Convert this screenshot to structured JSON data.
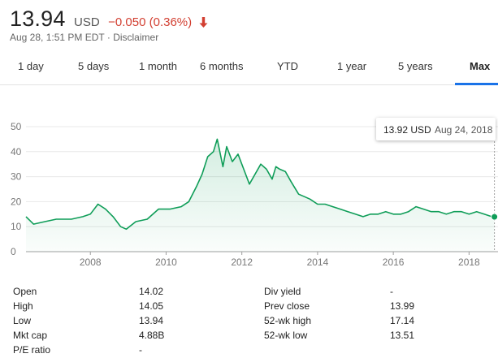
{
  "quote": {
    "price": "13.94",
    "currency": "USD",
    "change": "−0.050 (0.36%)",
    "change_color": "#d23f31",
    "timestamp": "Aug 28, 1:51 PM EDT",
    "separator": " · ",
    "disclaimer": "Disclaimer",
    "direction_icon": "down-arrow-icon"
  },
  "tabs": [
    {
      "label": "1 day"
    },
    {
      "label": "5 days"
    },
    {
      "label": "1 month"
    },
    {
      "label": "6 months"
    },
    {
      "label": "YTD"
    },
    {
      "label": "1 year"
    },
    {
      "label": "5 years"
    },
    {
      "label": "Max",
      "active": true
    }
  ],
  "tooltip": {
    "value": "13.92 USD",
    "date": "Aug 24, 2018"
  },
  "chart_data": {
    "type": "area",
    "title": "",
    "xlabel": "",
    "ylabel": "",
    "x_ticks": [
      "2008",
      "2010",
      "2012",
      "2014",
      "2016",
      "2018"
    ],
    "y_ticks": [
      "0",
      "10",
      "20",
      "30",
      "40",
      "50"
    ],
    "ylim": [
      0,
      50
    ],
    "xlim": [
      2006.3,
      2018.7
    ],
    "grid": true,
    "line_color": "#0f9d58",
    "x": [
      2006.3,
      2006.5,
      2006.8,
      2007.1,
      2007.5,
      2007.8,
      2008.0,
      2008.2,
      2008.4,
      2008.6,
      2008.8,
      2008.95,
      2009.2,
      2009.5,
      2009.8,
      2010.1,
      2010.4,
      2010.6,
      2010.8,
      2010.95,
      2011.1,
      2011.25,
      2011.35,
      2011.5,
      2011.6,
      2011.75,
      2011.9,
      2012.05,
      2012.2,
      2012.35,
      2012.5,
      2012.65,
      2012.8,
      2012.9,
      2013.0,
      2013.15,
      2013.3,
      2013.5,
      2013.65,
      2013.8,
      2014.0,
      2014.2,
      2014.4,
      2014.6,
      2014.8,
      2015.0,
      2015.2,
      2015.4,
      2015.6,
      2015.8,
      2016.0,
      2016.2,
      2016.4,
      2016.6,
      2016.8,
      2017.0,
      2017.2,
      2017.4,
      2017.6,
      2017.8,
      2018.0,
      2018.2,
      2018.4,
      2018.6,
      2018.67
    ],
    "y": [
      14,
      11,
      12,
      13,
      13,
      14,
      15,
      19,
      17,
      14,
      10,
      9,
      12,
      13,
      17,
      17,
      18,
      20,
      26,
      31,
      38,
      40,
      45,
      34,
      42,
      36,
      39,
      33,
      27,
      31,
      35,
      33,
      29,
      34,
      33,
      32,
      28,
      23,
      22,
      21,
      19,
      19,
      18,
      17,
      16,
      15,
      14,
      15,
      15,
      16,
      15,
      15,
      16,
      18,
      17,
      16,
      16,
      15,
      16,
      16,
      15,
      16,
      15,
      14,
      13.92
    ]
  },
  "stats": {
    "left": [
      {
        "label": "Open",
        "value": "14.02"
      },
      {
        "label": "High",
        "value": "14.05"
      },
      {
        "label": "Low",
        "value": "13.94"
      },
      {
        "label": "Mkt cap",
        "value": "4.88B"
      },
      {
        "label": "P/E ratio",
        "value": "-"
      }
    ],
    "right": [
      {
        "label": "Div yield",
        "value": "-"
      },
      {
        "label": "Prev close",
        "value": "13.99"
      },
      {
        "label": "52-wk high",
        "value": "17.14"
      },
      {
        "label": "52-wk low",
        "value": "13.51"
      }
    ]
  }
}
